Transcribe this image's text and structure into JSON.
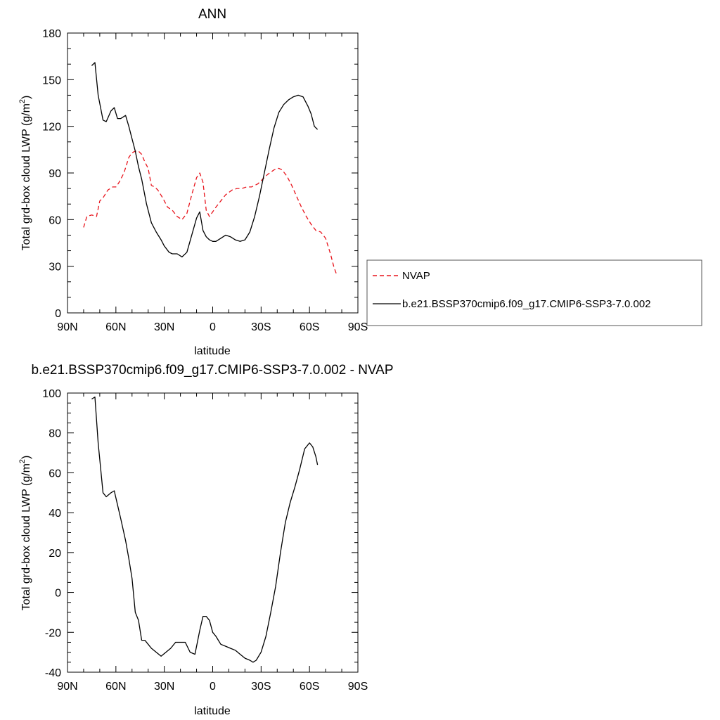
{
  "chart_data": [
    {
      "type": "line",
      "title": "ANN",
      "xlabel": "latitude",
      "ylabel_main": "Total grd-box cloud LWP (g/m",
      "ylabel_sup": "2",
      "ylabel_close": ")",
      "xlim": [
        90,
        -90
      ],
      "ylim": [
        0,
        180
      ],
      "x_ticks": [
        90,
        60,
        30,
        0,
        -30,
        -60,
        -90
      ],
      "x_tick_labels": [
        "90N",
        "60N",
        "30N",
        "0",
        "30S",
        "60S",
        "90S"
      ],
      "y_ticks": [
        0,
        30,
        60,
        90,
        120,
        150,
        180
      ],
      "y_tick_labels": [
        "0",
        "30",
        "60",
        "90",
        "120",
        "150",
        "180"
      ],
      "legend_position": "right",
      "series": [
        {
          "name": "NVAP",
          "color": "#e8141c",
          "dash": true,
          "x": [
            80,
            78,
            75,
            72,
            70,
            68,
            65,
            62,
            60,
            58,
            55,
            52,
            50,
            48,
            46,
            44,
            42,
            40,
            38,
            36,
            34,
            31,
            28,
            25,
            22,
            19,
            16,
            13,
            10,
            8,
            6,
            4,
            2,
            0,
            -2,
            -5,
            -8,
            -12,
            -15,
            -18,
            -21,
            -24,
            -28,
            -31,
            -34,
            -38,
            -41,
            -43,
            -46,
            -49,
            -52,
            -55,
            -58,
            -61,
            -64,
            -67,
            -70,
            -73,
            -75,
            -77
          ],
          "y": [
            55,
            62,
            63,
            62,
            72,
            74,
            79,
            81,
            81,
            84,
            90,
            100,
            103,
            104,
            104,
            102,
            97,
            93,
            82,
            81,
            79,
            74,
            68,
            66,
            62,
            60,
            64,
            76,
            87,
            90,
            84,
            66,
            62,
            65,
            68,
            72,
            76,
            79,
            80,
            80,
            81,
            81,
            83,
            86,
            89,
            92,
            93,
            92,
            88,
            82,
            75,
            68,
            62,
            57,
            53,
            52,
            48,
            38,
            30,
            24
          ]
        },
        {
          "name": "b.e21.BSSP370cmip6.f09_g17.CMIP6-SSP3-7.0.002",
          "color": "#000000",
          "dash": false,
          "x": [
            75,
            73,
            71,
            68,
            66,
            63,
            61,
            59,
            57,
            54,
            52,
            50,
            48,
            46,
            44,
            41,
            38,
            35,
            32,
            30,
            27,
            25,
            22,
            19,
            16,
            13,
            10,
            8,
            6,
            4,
            2,
            0,
            -2,
            -5,
            -8,
            -11,
            -14,
            -17,
            -20,
            -23,
            -26,
            -29,
            -32,
            -35,
            -38,
            -41,
            -44,
            -47,
            -50,
            -53,
            -56,
            -59,
            -61,
            -63,
            -65
          ],
          "y": [
            159,
            161,
            140,
            124,
            123,
            130,
            132,
            125,
            125,
            127,
            120,
            112,
            104,
            94,
            86,
            70,
            58,
            52,
            47,
            43,
            39,
            38,
            38,
            36,
            39,
            50,
            61,
            65,
            53,
            49,
            47,
            46,
            46,
            48,
            50,
            49,
            47,
            46,
            47,
            52,
            62,
            75,
            90,
            105,
            119,
            129,
            134,
            137,
            139,
            140,
            139,
            133,
            128,
            120,
            118
          ]
        }
      ]
    },
    {
      "type": "line",
      "title": "b.e21.BSSP370cmip6.f09_g17.CMIP6-SSP3-7.0.002 - NVAP",
      "xlabel": "latitude",
      "ylabel_main": "Total grd-box cloud LWP (g/m",
      "ylabel_sup": "2",
      "ylabel_close": ")",
      "xlim": [
        90,
        -90
      ],
      "ylim": [
        -40,
        100
      ],
      "x_ticks": [
        90,
        60,
        30,
        0,
        -30,
        -60,
        -90
      ],
      "x_tick_labels": [
        "90N",
        "60N",
        "30N",
        "0",
        "30S",
        "60S",
        "90S"
      ],
      "y_ticks": [
        -40,
        -20,
        0,
        20,
        40,
        60,
        80,
        100
      ],
      "y_tick_labels": [
        "-40",
        "-20",
        "0",
        "20",
        "40",
        "60",
        "80",
        "100"
      ],
      "series": [
        {
          "color": "#000000",
          "dash": false,
          "x": [
            75,
            73,
            71,
            68,
            66,
            63,
            61,
            59,
            57,
            54,
            52,
            50,
            48,
            46,
            44,
            42,
            40,
            38,
            35,
            32,
            29,
            26,
            23,
            20,
            17,
            14,
            11,
            8,
            6,
            4,
            2,
            0,
            -2,
            -5,
            -8,
            -11,
            -14,
            -17,
            -20,
            -23,
            -25,
            -27,
            -30,
            -33,
            -36,
            -39,
            -42,
            -45,
            -48,
            -51,
            -54,
            -57,
            -60,
            -62,
            -64,
            -65
          ],
          "y": [
            97,
            98,
            75,
            50,
            48,
            50,
            51,
            44,
            37,
            26,
            17,
            7,
            -10,
            -14,
            -24,
            -24,
            -26,
            -28,
            -30,
            -32,
            -30,
            -28,
            -25,
            -25,
            -25,
            -30,
            -31,
            -19,
            -12,
            -12,
            -14,
            -20,
            -22,
            -26,
            -27,
            -28,
            -29,
            -31,
            -33,
            -34,
            -35,
            -34,
            -30,
            -22,
            -10,
            3,
            20,
            35,
            45,
            53,
            62,
            72,
            75,
            73,
            68,
            64
          ]
        }
      ]
    }
  ]
}
